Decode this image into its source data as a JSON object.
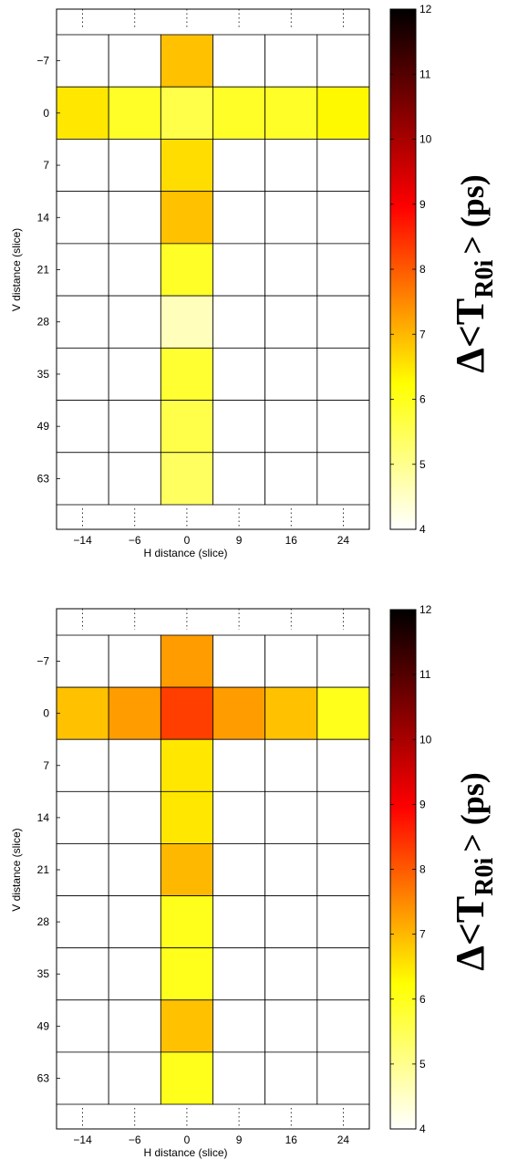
{
  "colormap": {
    "name": "hot-reversed",
    "stops": [
      {
        "v": 0.0,
        "c": "#ffffff"
      },
      {
        "v": 0.28,
        "c": "#ffff00"
      },
      {
        "v": 0.62,
        "c": "#ff0000"
      },
      {
        "v": 1.0,
        "c": "#000000"
      }
    ],
    "empty_cell_color": "#ffffff",
    "grid_color": "#000000"
  },
  "chart_data": [
    {
      "type": "heatmap",
      "xlabel": "H distance (slice)",
      "ylabel": "V distance (slice)",
      "x_categories": [
        "-14",
        "-6",
        "0",
        "9",
        "16",
        "24"
      ],
      "y_categories": [
        "-7",
        "0",
        "7",
        "14",
        "21",
        "28",
        "35",
        "49",
        "63"
      ],
      "colorbar": {
        "label_main": "Δ<T",
        "label_sub": "R0i",
        "label_end": "> (ps)",
        "min": 4,
        "max": 12,
        "ticks": [
          "4",
          "5",
          "6",
          "7",
          "8",
          "9",
          "10",
          "11",
          "12"
        ]
      },
      "cells": [
        {
          "x": "0",
          "y": "-7",
          "value": 6.9
        },
        {
          "x": "-14",
          "y": "0",
          "value": 6.5
        },
        {
          "x": "-6",
          "y": "0",
          "value": 5.9
        },
        {
          "x": "0",
          "y": "0",
          "value": 5.6
        },
        {
          "x": "9",
          "y": "0",
          "value": 5.9
        },
        {
          "x": "16",
          "y": "0",
          "value": 5.9
        },
        {
          "x": "24",
          "y": "0",
          "value": 6.3
        },
        {
          "x": "0",
          "y": "7",
          "value": 6.6
        },
        {
          "x": "0",
          "y": "14",
          "value": 6.9
        },
        {
          "x": "0",
          "y": "21",
          "value": 5.9
        },
        {
          "x": "0",
          "y": "28",
          "value": 4.6
        },
        {
          "x": "0",
          "y": "35",
          "value": 5.8
        },
        {
          "x": "0",
          "y": "49",
          "value": 5.6
        },
        {
          "x": "0",
          "y": "63",
          "value": 5.4
        }
      ]
    },
    {
      "type": "heatmap",
      "xlabel": "H distance (slice)",
      "ylabel": "V distance (slice)",
      "x_categories": [
        "-14",
        "-6",
        "0",
        "9",
        "16",
        "24"
      ],
      "y_categories": [
        "-7",
        "0",
        "7",
        "14",
        "21",
        "28",
        "35",
        "49",
        "63"
      ],
      "colorbar": {
        "label_main": "Δ<T",
        "label_sub": "R0i",
        "label_end": "> (ps)",
        "min": 4,
        "max": 12,
        "ticks": [
          "4",
          "5",
          "6",
          "7",
          "8",
          "9",
          "10",
          "11",
          "12"
        ]
      },
      "cells": [
        {
          "x": "0",
          "y": "-7",
          "value": 7.3
        },
        {
          "x": "-14",
          "y": "0",
          "value": 6.9
        },
        {
          "x": "-6",
          "y": "0",
          "value": 7.3
        },
        {
          "x": "0",
          "y": "0",
          "value": 8.3
        },
        {
          "x": "9",
          "y": "0",
          "value": 7.3
        },
        {
          "x": "16",
          "y": "0",
          "value": 6.9
        },
        {
          "x": "24",
          "y": "0",
          "value": 6.0
        },
        {
          "x": "0",
          "y": "7",
          "value": 6.5
        },
        {
          "x": "0",
          "y": "14",
          "value": 6.5
        },
        {
          "x": "0",
          "y": "21",
          "value": 7.0
        },
        {
          "x": "0",
          "y": "28",
          "value": 6.0
        },
        {
          "x": "0",
          "y": "35",
          "value": 6.0
        },
        {
          "x": "0",
          "y": "49",
          "value": 6.9
        },
        {
          "x": "0",
          "y": "63",
          "value": 6.0
        }
      ]
    }
  ]
}
